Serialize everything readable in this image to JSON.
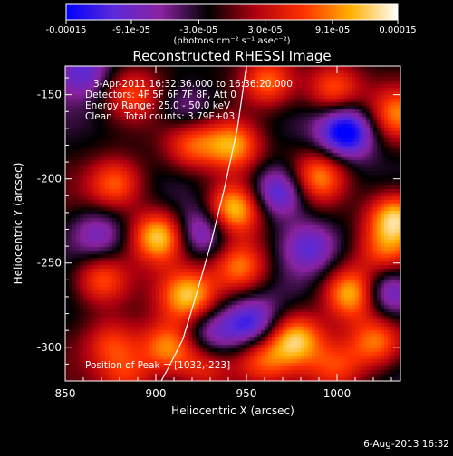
{
  "colorbar": {
    "tick_labels": [
      "-0.00015",
      "-9.1e-05",
      "-3.0e-05",
      "3.0e-05",
      "9.1e-05",
      "0.00015"
    ],
    "units": "(photons cm⁻² s⁻¹ asec⁻²)",
    "range": [
      -0.00015,
      0.00015
    ],
    "colors": [
      "#0000ff",
      "#5a2ad8",
      "#8a22a0",
      "#000000",
      "#b00010",
      "#ff3000",
      "#ffb000",
      "#ffffff"
    ]
  },
  "chart_data": {
    "type": "heatmap",
    "title": "Reconstructed RHESSI Image",
    "xlabel": "Heliocentric X (arcsec)",
    "ylabel": "Heliocentric Y (arcsec)",
    "xlim": [
      850,
      1035
    ],
    "ylim": [
      -320,
      -133
    ],
    "xticks": [
      850,
      900,
      950,
      1000
    ],
    "yticks": [
      -150,
      -200,
      -250,
      -300
    ],
    "grid": false,
    "annotations": [
      "3-Apr-2011 16:32:36.000 to 16:36:20.000",
      "Detectors: 4F 5F 6F 7F 8F, Att 0",
      "Energy Range: 25.0 - 50.0 keV",
      "Clean    Total counts: 3.79E+03"
    ],
    "peak_label": "Position of Peak = [1032,-223]",
    "limb_curve": {
      "x": [
        950,
        945,
        938,
        930,
        922,
        915,
        908,
        903
      ],
      "y": [
        -133,
        -170,
        -205,
        -240,
        -270,
        -295,
        -310,
        -320
      ]
    },
    "sources": [
      {
        "x": 1032,
        "y": -223,
        "value": 0.00015
      },
      {
        "x": 902,
        "y": -234,
        "value": 0.00015
      },
      {
        "x": 943,
        "y": -218,
        "value": 0.000145
      },
      {
        "x": 1008,
        "y": -268,
        "value": 0.00014
      },
      {
        "x": 990,
        "y": -199,
        "value": 0.00011
      },
      {
        "x": 918,
        "y": -270,
        "value": 0.000125
      },
      {
        "x": 977,
        "y": -295,
        "value": 0.00013
      },
      {
        "x": 907,
        "y": -300,
        "value": 0.00012
      },
      {
        "x": 943,
        "y": -180,
        "value": 0.00012
      },
      {
        "x": 947,
        "y": -252,
        "value": 0.00011
      },
      {
        "x": 1022,
        "y": -297,
        "value": 0.00011
      },
      {
        "x": 920,
        "y": -180,
        "value": 9e-05
      },
      {
        "x": 998,
        "y": -147,
        "value": 0.0001
      },
      {
        "x": 962,
        "y": -143,
        "value": 0.00011
      },
      {
        "x": 878,
        "y": -203,
        "value": 9.5e-05
      },
      {
        "x": 870,
        "y": -260,
        "value": 0.0001
      },
      {
        "x": 876,
        "y": -298,
        "value": 7.5e-05
      },
      {
        "x": 1033,
        "y": -162,
        "value": 9.5e-05
      },
      {
        "x": 886,
        "y": -150,
        "value": 8e-05
      },
      {
        "x": 958,
        "y": -306,
        "value": 8.5e-05
      },
      {
        "x": 927,
        "y": -312,
        "value": 8e-05
      },
      {
        "x": 1000,
        "y": -312,
        "value": 7.5e-05
      },
      {
        "x": 885,
        "y": -318,
        "value": 7e-05
      },
      {
        "x": 1027,
        "y": -243,
        "value": 8e-05
      },
      {
        "x": 1005,
        "y": -172,
        "value": -0.00015
      },
      {
        "x": 968,
        "y": -208,
        "value": -0.00012
      },
      {
        "x": 1028,
        "y": -267,
        "value": -0.00011
      },
      {
        "x": 953,
        "y": -287,
        "value": -0.00011
      },
      {
        "x": 925,
        "y": -232,
        "value": -9e-05
      },
      {
        "x": 860,
        "y": -135,
        "value": -8e-05
      },
      {
        "x": 985,
        "y": -240,
        "value": -8e-05
      },
      {
        "x": 868,
        "y": -233,
        "value": -7e-05
      },
      {
        "x": 917,
        "y": -158,
        "value": -6e-05
      },
      {
        "x": 930,
        "y": -292,
        "value": -7e-05
      }
    ]
  },
  "footer": {
    "timestamp": "6-Aug-2013 16:32"
  }
}
